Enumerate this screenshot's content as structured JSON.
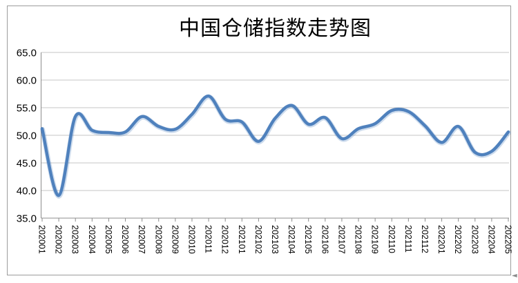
{
  "chart_data": {
    "type": "line",
    "title": "中国仓储指数走势图",
    "categories": [
      "202001",
      "202002",
      "202003",
      "202004",
      "202005",
      "202006",
      "202007",
      "202008",
      "202009",
      "202010",
      "202011",
      "202012",
      "202101",
      "202102",
      "202103",
      "202104",
      "202105",
      "202106",
      "202107",
      "202108",
      "202109",
      "202110",
      "202111",
      "202112",
      "202201",
      "202202",
      "202203",
      "202204",
      "202205"
    ],
    "values": [
      51.2,
      39.1,
      53.4,
      50.9,
      50.5,
      50.6,
      53.4,
      51.6,
      51.1,
      53.8,
      57.1,
      52.9,
      52.4,
      48.9,
      53.1,
      55.4,
      52.0,
      53.2,
      49.4,
      51.2,
      52.1,
      54.5,
      54.3,
      51.7,
      48.7,
      51.6,
      46.9,
      47.1,
      50.6
    ],
    "xlabel": "",
    "ylabel": "",
    "ylim": [
      35.0,
      65.0
    ],
    "ytick_step": 5.0,
    "ytick_labels": [
      "65.0",
      "60.0",
      "55.0",
      "50.0",
      "45.0",
      "40.0",
      "35.0"
    ],
    "grid": true,
    "legend_position": "none",
    "line_smooth": true,
    "colors": {
      "line": "#4F81BD",
      "line_glow": "rgba(79,129,189,0.28)",
      "gridline": "#c6c6c6",
      "axis": "#8c8c8c",
      "tick": "#8c8c8c",
      "text": "#000000",
      "background": "#ffffff",
      "frame_border": "#9b9b9b"
    }
  },
  "artifacts": {
    "corner_cursor": "◄"
  }
}
